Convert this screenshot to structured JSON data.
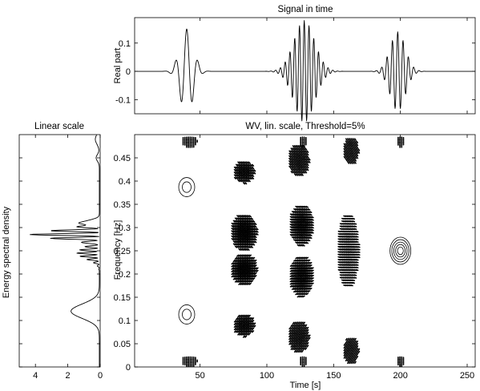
{
  "chart_data": [
    {
      "id": "signal",
      "type": "line",
      "title": "Signal in time",
      "ylabel": "Real part",
      "xlim": [
        1,
        256
      ],
      "ylim": [
        -0.15,
        0.19
      ],
      "yticks": [
        -0.1,
        0,
        0.1
      ],
      "ytick_labels": [
        "-0.1",
        "0",
        "0.1"
      ],
      "grid": false,
      "series": [
        {
          "atoms": [
            {
              "t0": 40,
              "f": 0.12,
              "amp": 0.15,
              "width": 7
            },
            {
              "t0": 128,
              "f": 0.28,
              "amp": 0.18,
              "width": 11
            },
            {
              "t0": 198,
              "f": 0.25,
              "amp": 0.14,
              "width": 8
            }
          ]
        }
      ]
    },
    {
      "id": "spectrum",
      "type": "line",
      "title": "Linear scale",
      "ylabel": "Energy spectral density",
      "xlim": [
        5,
        0
      ],
      "xticks": [
        4,
        2,
        0
      ],
      "xtick_labels": [
        "4",
        "2",
        "0"
      ],
      "ylim": [
        0,
        0.5
      ],
      "grid": false
    },
    {
      "id": "wv",
      "type": "contour",
      "title": "WV, lin. scale, Threshold=5%",
      "xlabel": "Time [s]",
      "ylabel": "Frequency [Hz]",
      "xlim": [
        1,
        256
      ],
      "ylim": [
        0,
        0.5
      ],
      "xticks": [
        50,
        100,
        150,
        200,
        250
      ],
      "xtick_labels": [
        "50",
        "100",
        "150",
        "200",
        "250"
      ],
      "yticks": [
        0,
        0.05,
        0.1,
        0.15,
        0.2,
        0.25,
        0.3,
        0.35,
        0.4,
        0.45
      ],
      "ytick_labels": [
        "0",
        "0.05",
        "0.1",
        "0.15",
        "0.2",
        "0.25",
        "0.3",
        "0.35",
        "0.4",
        "0.45"
      ],
      "grid": false,
      "auto_terms": [
        {
          "t": 40,
          "f": 0.387,
          "levels": 2
        },
        {
          "t": 40,
          "f": 0.113,
          "levels": 2
        },
        {
          "t": 200,
          "f": 0.25,
          "levels": 5
        }
      ],
      "interference_patches": [
        {
          "t": 83,
          "f": 0.42,
          "dt": 8,
          "df": 0.025,
          "angle": -45
        },
        {
          "t": 83,
          "f": 0.29,
          "dt": 10,
          "df": 0.04,
          "angle": -40
        },
        {
          "t": 83,
          "f": 0.21,
          "dt": 10,
          "df": 0.035,
          "angle": 40
        },
        {
          "t": 83,
          "f": 0.09,
          "dt": 8,
          "df": 0.025,
          "angle": 45
        },
        {
          "t": 124,
          "f": 0.445,
          "dt": 8,
          "df": 0.035,
          "angle": -50
        },
        {
          "t": 126,
          "f": 0.305,
          "dt": 9,
          "df": 0.045,
          "angle": -30
        },
        {
          "t": 126,
          "f": 0.195,
          "dt": 9,
          "df": 0.045,
          "angle": 30
        },
        {
          "t": 124,
          "f": 0.065,
          "dt": 8,
          "df": 0.035,
          "angle": 50
        },
        {
          "t": 163,
          "f": 0.465,
          "dt": 6,
          "df": 0.03,
          "angle": -55
        },
        {
          "t": 161,
          "f": 0.25,
          "dt": 8,
          "df": 0.08,
          "angle": -15
        },
        {
          "t": 163,
          "f": 0.035,
          "dt": 6,
          "df": 0.03,
          "angle": 55
        },
        {
          "t": 42,
          "f": 0.485,
          "dt": 6,
          "df": 0.012,
          "angle": 90
        },
        {
          "t": 42,
          "f": 0.012,
          "dt": 6,
          "df": 0.012,
          "angle": 90
        },
        {
          "t": 127,
          "f": 0.485,
          "dt": 3,
          "df": 0.012,
          "angle": 90
        },
        {
          "t": 127,
          "f": 0.012,
          "dt": 3,
          "df": 0.012,
          "angle": 90
        },
        {
          "t": 200,
          "f": 0.485,
          "dt": 3,
          "df": 0.012,
          "angle": 90
        },
        {
          "t": 200,
          "f": 0.012,
          "dt": 3,
          "df": 0.012,
          "angle": 90
        }
      ]
    }
  ]
}
